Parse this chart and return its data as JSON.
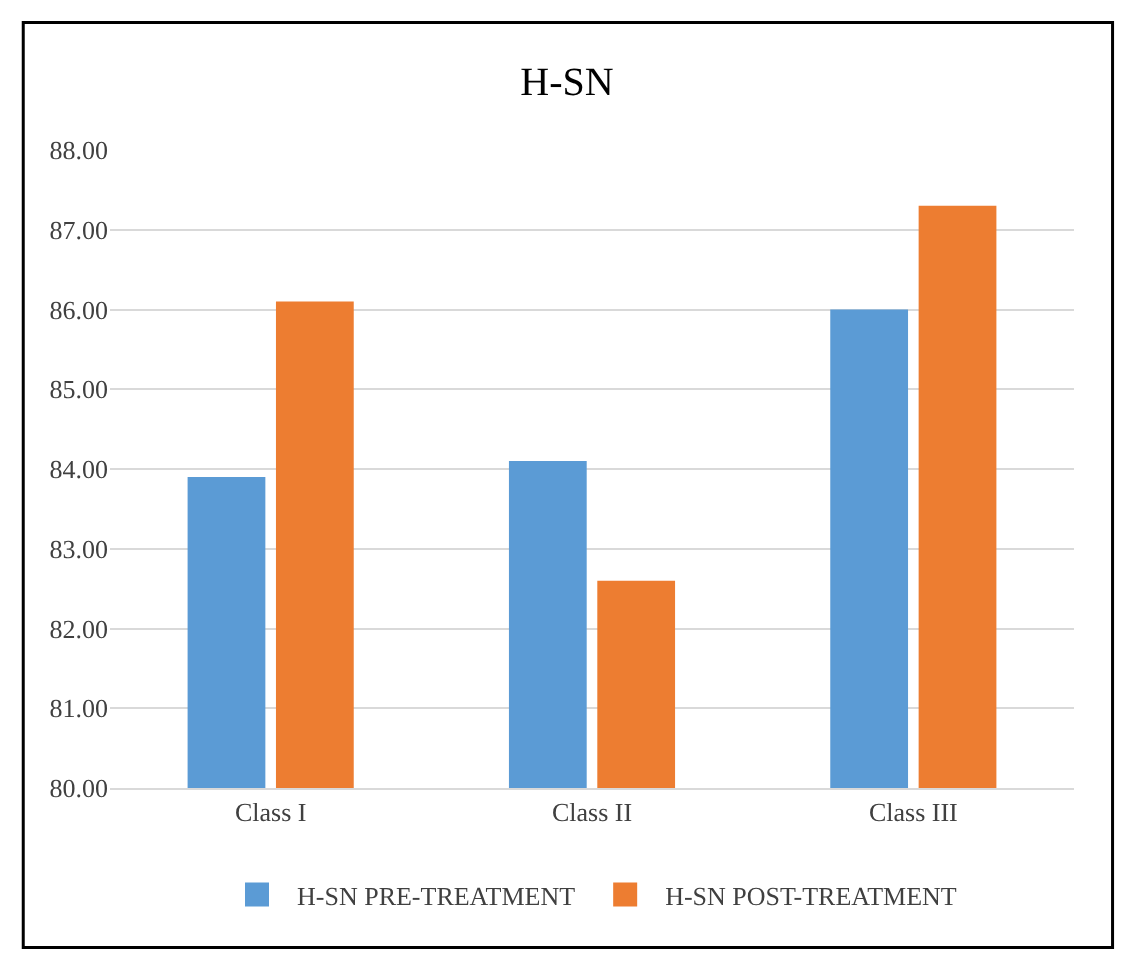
{
  "chart_data": {
    "type": "bar",
    "title": "H-SN",
    "categories": [
      "Class I",
      "Class II",
      "Class III"
    ],
    "series": [
      {
        "name": "H-SN PRE-TREATMENT",
        "color": "#5b9bd5",
        "values": [
          83.9,
          84.1,
          86.0
        ]
      },
      {
        "name": "H-SN POST-TREATMENT",
        "color": "#ed7d31",
        "values": [
          86.1,
          82.6,
          87.3
        ]
      }
    ],
    "ylim": [
      80,
      88
    ],
    "yticks": [
      {
        "value": 80,
        "label": "80.00"
      },
      {
        "value": 81,
        "label": "81.00"
      },
      {
        "value": 82,
        "label": "82.00"
      },
      {
        "value": 83,
        "label": "83.00"
      },
      {
        "value": 84,
        "label": "84.00"
      },
      {
        "value": 85,
        "label": "85.00"
      },
      {
        "value": 86,
        "label": "86.00"
      },
      {
        "value": 87,
        "label": "87.00"
      },
      {
        "value": 88,
        "label": "88.00"
      }
    ],
    "grid": "y",
    "legend": "bottom"
  }
}
